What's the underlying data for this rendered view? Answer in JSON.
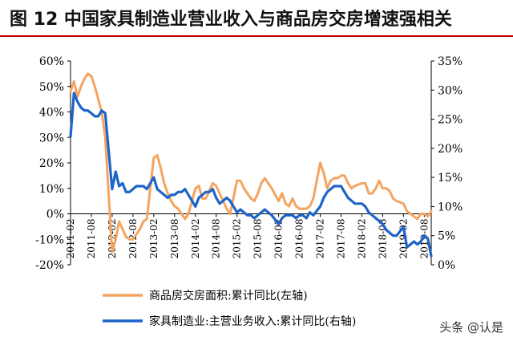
{
  "header": {
    "title": "图 12 中国家具制造业营业收入与商品房交房增速强相关"
  },
  "watermark": "头条 @认是",
  "colors": {
    "orange": "#f4a460",
    "blue": "#1e64c8",
    "axis": "#000000",
    "title_rule": "#c00000"
  },
  "chart_data": {
    "type": "line",
    "title": "图 12 中国家具制造业营业收入与商品房交房增速强相关",
    "x_tick_labels": [
      "2011-02",
      "2011-08",
      "2012-02",
      "2012-08",
      "2013-02",
      "2013-08",
      "2014-02",
      "2014-08",
      "2015-02",
      "2015-08",
      "2016-02",
      "2016-08",
      "2017-02",
      "2017-08",
      "2018-02",
      "2018-08",
      "2019-02",
      "2019-08"
    ],
    "y_left": {
      "ticks": [
        "60%",
        "50%",
        "40%",
        "30%",
        "20%",
        "10%",
        "0%",
        "-10%",
        "-20%"
      ],
      "ylim": [
        -20,
        60
      ]
    },
    "y_right": {
      "ticks": [
        "35%",
        "30%",
        "25%",
        "20%",
        "15%",
        "10%",
        "5%",
        "0%"
      ],
      "ylim": [
        0,
        35
      ]
    },
    "legend": [
      "商品房交房面积:累计同比(左轴)",
      "家具制造业:主营业务收入:累计同比(右轴)"
    ],
    "series": [
      {
        "name": "商品房交房面积:累计同比(左轴)",
        "axis": "left",
        "color": "#f4a460",
        "x": [
          "2011-02",
          "2011-03",
          "2011-04",
          "2011-05",
          "2011-06",
          "2011-07",
          "2011-08",
          "2011-09",
          "2011-10",
          "2011-11",
          "2011-12",
          "2012-02",
          "2012-03",
          "2012-04",
          "2012-05",
          "2012-06",
          "2012-07",
          "2012-08",
          "2012-09",
          "2012-10",
          "2012-11",
          "2012-12",
          "2013-02",
          "2013-03",
          "2013-04",
          "2013-05",
          "2013-06",
          "2013-07",
          "2013-08",
          "2013-09",
          "2013-10",
          "2013-11",
          "2013-12",
          "2014-02",
          "2014-03",
          "2014-04",
          "2014-05",
          "2014-06",
          "2014-07",
          "2014-08",
          "2014-09",
          "2014-10",
          "2014-11",
          "2014-12",
          "2015-02",
          "2015-03",
          "2015-04",
          "2015-05",
          "2015-06",
          "2015-07",
          "2015-08",
          "2015-09",
          "2015-10",
          "2015-11",
          "2015-12",
          "2016-02",
          "2016-03",
          "2016-04",
          "2016-05",
          "2016-06",
          "2016-07",
          "2016-08",
          "2016-09",
          "2016-10",
          "2016-11",
          "2016-12",
          "2017-02",
          "2017-03",
          "2017-04",
          "2017-05",
          "2017-06",
          "2017-07",
          "2017-08",
          "2017-09",
          "2017-10",
          "2017-11",
          "2017-12",
          "2018-02",
          "2018-03",
          "2018-04",
          "2018-05",
          "2018-06",
          "2018-07",
          "2018-08",
          "2018-09",
          "2018-10",
          "2018-11",
          "2018-12",
          "2019-02",
          "2019-03",
          "2019-04",
          "2019-05",
          "2019-06",
          "2019-07",
          "2019-08",
          "2019-09",
          "2019-10"
        ],
        "values": [
          48,
          52,
          46,
          50,
          53,
          55,
          54,
          50,
          45,
          40,
          30,
          -15,
          -10,
          -3,
          -6,
          -9,
          -10,
          -10,
          -8,
          -6,
          -3,
          -2,
          22,
          23,
          18,
          12,
          8,
          5,
          3,
          2,
          0,
          -2,
          0,
          10,
          11,
          6,
          6,
          9,
          12,
          11,
          8,
          5,
          2,
          0,
          13,
          13,
          10,
          8,
          6,
          5,
          8,
          12,
          14,
          12,
          10,
          5,
          8,
          4,
          3,
          6,
          3,
          2,
          2,
          2,
          3,
          6,
          20,
          16,
          10,
          13,
          14,
          14,
          15,
          15,
          12,
          10,
          11,
          12,
          12,
          8,
          8,
          10,
          13,
          10,
          10,
          9,
          6,
          5,
          4,
          1,
          0,
          -1,
          -2,
          0,
          0,
          -1,
          1
        ]
      },
      {
        "name": "家具制造业:主营业务收入:累计同比(右轴)",
        "axis": "right",
        "color": "#1e64c8",
        "x": [
          "2011-02",
          "2011-03",
          "2011-04",
          "2011-05",
          "2011-06",
          "2011-07",
          "2011-08",
          "2011-09",
          "2011-10",
          "2011-11",
          "2011-12",
          "2012-02",
          "2012-03",
          "2012-04",
          "2012-05",
          "2012-06",
          "2012-07",
          "2012-08",
          "2012-09",
          "2012-10",
          "2012-11",
          "2012-12",
          "2013-02",
          "2013-03",
          "2013-04",
          "2013-05",
          "2013-06",
          "2013-07",
          "2013-08",
          "2013-09",
          "2013-10",
          "2013-11",
          "2013-12",
          "2014-02",
          "2014-03",
          "2014-04",
          "2014-05",
          "2014-06",
          "2014-07",
          "2014-08",
          "2014-09",
          "2014-10",
          "2014-11",
          "2014-12",
          "2015-02",
          "2015-03",
          "2015-04",
          "2015-05",
          "2015-06",
          "2015-07",
          "2015-08",
          "2015-09",
          "2015-10",
          "2015-11",
          "2015-12",
          "2016-02",
          "2016-03",
          "2016-04",
          "2016-05",
          "2016-06",
          "2016-07",
          "2016-08",
          "2016-09",
          "2016-10",
          "2016-11",
          "2016-12",
          "2017-02",
          "2017-03",
          "2017-04",
          "2017-05",
          "2017-06",
          "2017-07",
          "2017-08",
          "2017-09",
          "2017-10",
          "2017-11",
          "2017-12",
          "2018-02",
          "2018-03",
          "2018-04",
          "2018-05",
          "2018-06",
          "2018-07",
          "2018-08",
          "2018-09",
          "2018-10",
          "2018-11",
          "2018-12",
          "2019-02",
          "2019-03",
          "2019-04",
          "2019-05",
          "2019-06",
          "2019-07",
          "2019-08",
          "2019-09",
          "2019-10"
        ],
        "values": [
          22,
          29.5,
          28,
          27,
          26.5,
          26.5,
          26,
          25.5,
          25.5,
          26.5,
          26,
          13,
          16,
          13.5,
          14,
          12.5,
          12.5,
          13,
          13.5,
          13.5,
          13.5,
          13,
          15,
          13,
          12.5,
          12,
          11.5,
          12,
          12,
          12.5,
          12.5,
          13,
          12,
          10,
          11.5,
          12,
          12.5,
          12.5,
          13,
          11.5,
          10.5,
          11,
          11.5,
          11,
          9,
          9.5,
          9,
          8.5,
          8.5,
          8,
          8.5,
          9,
          9.5,
          9,
          8.5,
          7,
          8,
          8.5,
          8.5,
          8.5,
          8,
          8.5,
          8.5,
          8,
          9,
          8.5,
          10,
          11.5,
          12.5,
          13,
          13.5,
          13.5,
          13.5,
          12.5,
          11.5,
          11,
          10.5,
          10.5,
          10,
          9,
          8.5,
          8,
          7.5,
          7,
          6,
          5.5,
          5,
          5,
          6.5,
          3,
          3.5,
          4,
          3.5,
          4,
          5,
          4.5,
          1.5
        ]
      }
    ]
  }
}
